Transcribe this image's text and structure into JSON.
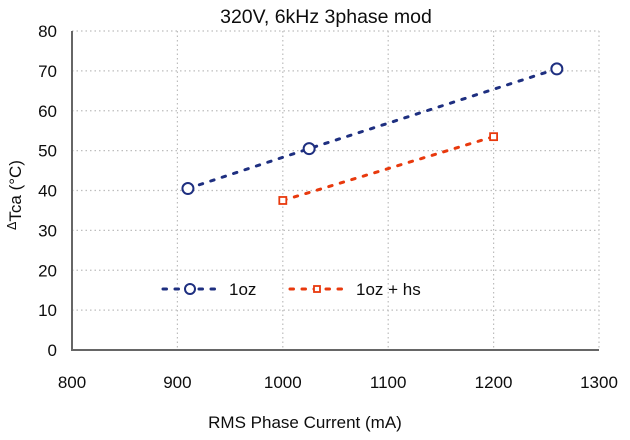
{
  "chart_data": {
    "type": "line",
    "title": "320V, 6kHz 3phase mod",
    "xlabel": "RMS Phase Current (mA)",
    "ylabel": "ΔTca (°C)",
    "ylabel_delta": "Δ",
    "ylabel_rest": "Tca (°C)",
    "xlim": [
      800,
      1300
    ],
    "ylim": [
      0,
      80
    ],
    "x_ticks": [
      800,
      900,
      1000,
      1100,
      1200,
      1300
    ],
    "y_ticks": [
      0,
      10,
      20,
      30,
      40,
      50,
      60,
      70,
      80
    ],
    "grid": true,
    "grid_style": "dotted",
    "legend_position": "inside-bottom-center",
    "series": [
      {
        "name": "1oz",
        "color": "#1e2f80",
        "marker": "circle",
        "line_style": "dashed",
        "x": [
          910,
          1025,
          1260
        ],
        "y": [
          40.5,
          50.5,
          70.5
        ]
      },
      {
        "name": "1oz + hs",
        "color": "#e8390d",
        "marker": "square",
        "line_style": "dashed",
        "x": [
          1000,
          1200
        ],
        "y": [
          37.5,
          53.5
        ]
      }
    ],
    "colors": {
      "grid": "#bdbdbd",
      "axis": "#666666",
      "text": "#0d0d0d",
      "background": "#ffffff"
    }
  }
}
